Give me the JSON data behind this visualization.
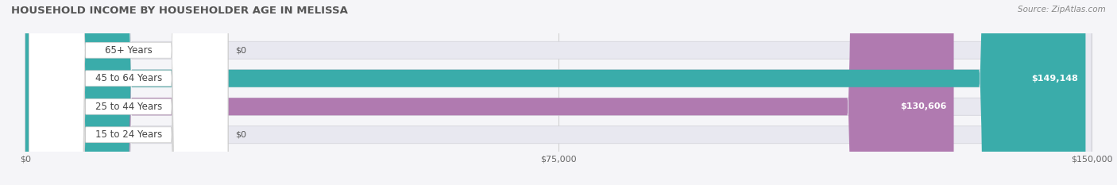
{
  "title": "HOUSEHOLD INCOME BY HOUSEHOLDER AGE IN MELISSA",
  "source": "Source: ZipAtlas.com",
  "categories": [
    "15 to 24 Years",
    "25 to 44 Years",
    "45 to 64 Years",
    "65+ Years"
  ],
  "values": [
    0,
    130606,
    149148,
    0
  ],
  "max_value": 150000,
  "bar_colors": [
    "#a8b8e8",
    "#b07ab0",
    "#3aacaa",
    "#a8b8e8"
  ],
  "bar_bg_color": "#e8e8f0",
  "label_bg_color": "#ffffff",
  "label_text_color": "#444444",
  "value_text_color": "#ffffff",
  "value_text_color_zero": "#555555",
  "title_color": "#555555",
  "source_color": "#888888",
  "background_color": "#f5f5f8",
  "row_bg_colors": [
    "#f0f0f5",
    "#f0f0f5",
    "#f0f0f5",
    "#f0f0f5"
  ],
  "xlim": [
    0,
    150000
  ],
  "xticks": [
    0,
    75000,
    150000
  ],
  "xtick_labels": [
    "$0",
    "$75,000",
    "$150,000"
  ]
}
